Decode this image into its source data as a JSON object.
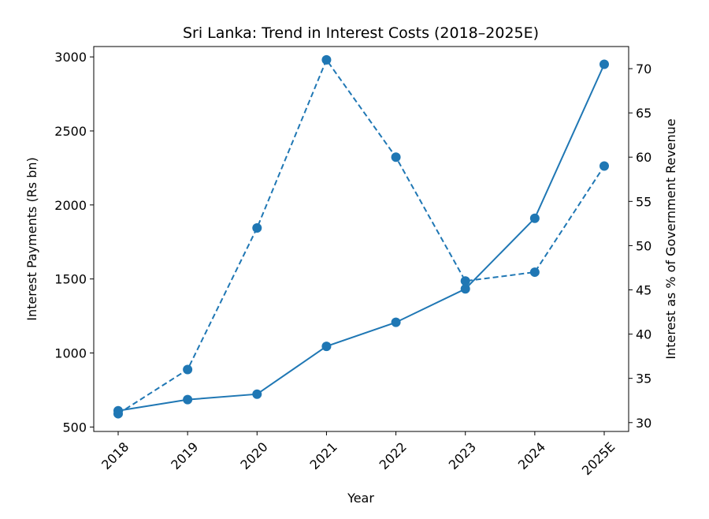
{
  "chart_data": {
    "type": "line",
    "title": "Sri Lanka: Trend in Interest Costs (2018–2025E)",
    "xlabel": "Year",
    "ylabel_left": "Interest Payments (Rs bn)",
    "ylabel_right": "Interest as % of Government Revenue",
    "categories": [
      "2018",
      "2019",
      "2020",
      "2021",
      "2022",
      "2023",
      "2024",
      "2025E"
    ],
    "ylim_left": [
      470,
      3070
    ],
    "yticks_left": [
      500,
      1000,
      1500,
      2000,
      2500,
      3000
    ],
    "ylim_right": [
      29.0,
      72.5
    ],
    "yticks_right": [
      30,
      35,
      40,
      45,
      50,
      55,
      60,
      65,
      70
    ],
    "series": [
      {
        "name": "Interest Payments (Rs bn)",
        "axis": "left",
        "style": "solid",
        "color": "#1f77b4",
        "values": [
          610,
          685,
          722,
          1045,
          1207,
          1433,
          1910,
          2950
        ]
      },
      {
        "name": "Interest as % of Government Revenue",
        "axis": "right",
        "style": "dashed",
        "color": "#1f77b4",
        "values": [
          31,
          36,
          52,
          71,
          60,
          46,
          47,
          59
        ]
      }
    ],
    "grid": false,
    "legend": "none"
  }
}
